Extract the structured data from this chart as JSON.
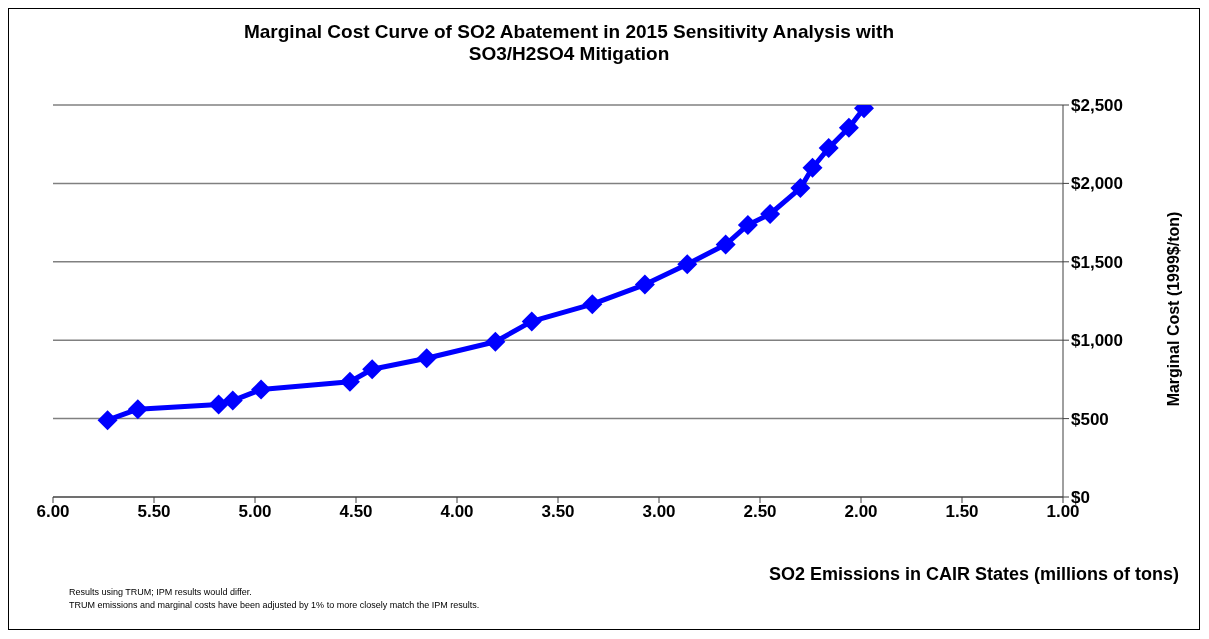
{
  "chart_data": {
    "type": "line",
    "title": "Marginal Cost Curve of SO2 Abatement in 2015 Sensitivity Analysis with SO3/H2SO4 Mitigation",
    "xlabel": "SO2 Emissions in CAIR States (millions of tons)",
    "ylabel": "Marginal Cost  (1999$/ton)",
    "x": [
      5.73,
      5.58,
      5.18,
      5.11,
      4.97,
      4.53,
      4.42,
      4.15,
      3.81,
      3.63,
      3.33,
      3.07,
      2.86,
      2.67,
      2.56,
      2.45,
      2.3,
      2.24,
      2.16,
      2.06,
      1.985
    ],
    "series": [
      {
        "color": "#0000ff",
        "values": [
          490,
          560,
          590,
          615,
          685,
          735,
          815,
          885,
          990,
          1120,
          1230,
          1355,
          1485,
          1610,
          1735,
          1805,
          1970,
          2100,
          2225,
          2355,
          2480
        ]
      }
    ],
    "xlim": [
      6,
      1
    ],
    "xticks": [
      {
        "value": 6,
        "label": "6.00"
      },
      {
        "value": 5.5,
        "label": "5.50"
      },
      {
        "value": 5,
        "label": "5.00"
      },
      {
        "value": 4.5,
        "label": "4.50"
      },
      {
        "value": 4,
        "label": "4.00"
      },
      {
        "value": 3.5,
        "label": "3.50"
      },
      {
        "value": 3,
        "label": "3.00"
      },
      {
        "value": 2.5,
        "label": "2.50"
      },
      {
        "value": 2,
        "label": "2.00"
      },
      {
        "value": 1.5,
        "label": "1.50"
      },
      {
        "value": 1,
        "label": "1.00"
      }
    ],
    "ylim": [
      0,
      2500
    ],
    "yticks": [
      {
        "value": 0,
        "label": "$0"
      },
      {
        "value": 500,
        "label": "$500"
      },
      {
        "value": 1000,
        "label": "$1,000"
      },
      {
        "value": 1500,
        "label": "$1,500"
      },
      {
        "value": 2000,
        "label": "$2,000"
      },
      {
        "value": 2500,
        "label": "$2,500"
      }
    ],
    "grid": "y",
    "marker": "diamond",
    "line_style": "solid",
    "annotations": [
      "Results using TRUM; IPM results would differ.",
      "TRUM emissions and marginal costs have been adjusted by 1% to more closely match the IPM results."
    ]
  }
}
